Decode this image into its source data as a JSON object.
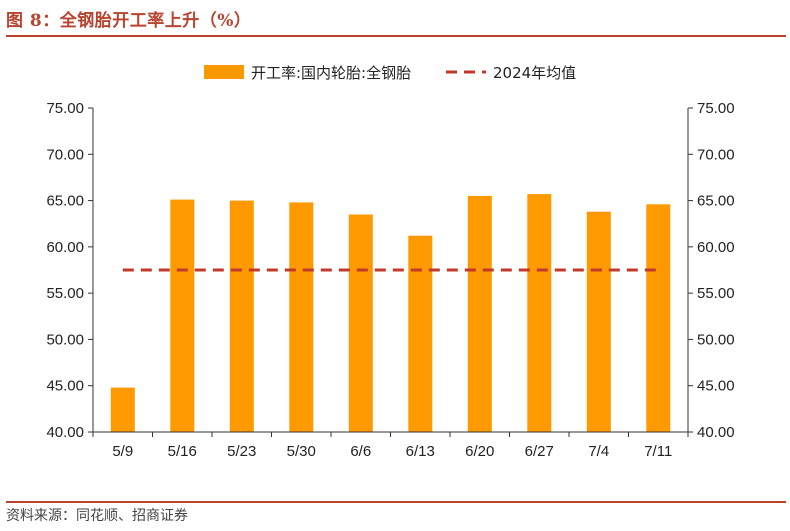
{
  "figure": {
    "title": "图 8：全钢胎开工率上升（%）",
    "source": "资料来源：同花顺、招商证券"
  },
  "colors": {
    "bar": "#ff9900",
    "avg_line": "#c0392b",
    "accent": "#b8432f",
    "axis": "#333333"
  },
  "chart_data": {
    "type": "bar",
    "title": "",
    "categories": [
      "5/9",
      "5/16",
      "5/23",
      "5/30",
      "6/6",
      "6/13",
      "6/20",
      "6/27",
      "7/4",
      "7/11"
    ],
    "series": [
      {
        "name": "开工率:国内轮胎:全钢胎",
        "type": "bar",
        "values": [
          44.8,
          65.1,
          65.0,
          64.8,
          63.5,
          61.2,
          65.5,
          65.7,
          63.8,
          64.6
        ]
      },
      {
        "name": "2024年均值",
        "type": "line",
        "style": "dashed",
        "values": [
          57.5,
          57.5,
          57.5,
          57.5,
          57.5,
          57.5,
          57.5,
          57.5,
          57.5,
          57.5
        ]
      }
    ],
    "ylim": [
      40,
      75
    ],
    "yticks": [
      "40.00",
      "45.00",
      "50.00",
      "55.00",
      "60.00",
      "65.00",
      "70.00",
      "75.00"
    ],
    "secondary_ylim": [
      40,
      75
    ],
    "secondary_yticks": [
      "40.00",
      "45.00",
      "50.00",
      "55.00",
      "60.00",
      "65.00",
      "70.00",
      "75.00"
    ],
    "xlabel": "",
    "ylabel": "",
    "legend_position": "top-center",
    "grid": false
  }
}
